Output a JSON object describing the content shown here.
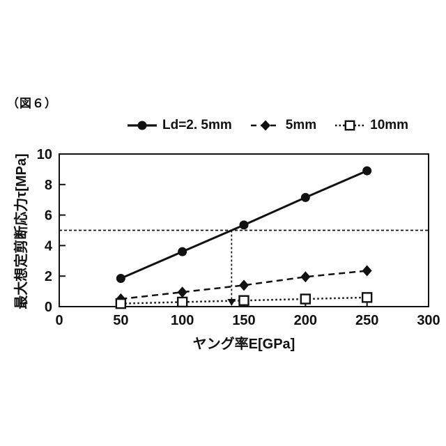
{
  "figure_label": "（図６）",
  "colors": {
    "ink": "#111111",
    "background": "#ffffff"
  },
  "legend": {
    "items": [
      {
        "label": "Ld=2. 5mm",
        "marker": "circle-filled",
        "line": "solid"
      },
      {
        "label": "5mm",
        "marker": "diamond-filled",
        "line": "dashed"
      },
      {
        "label": "10mm",
        "marker": "square-open",
        "line": "dotted"
      }
    ]
  },
  "chart_data": {
    "type": "line",
    "title": "",
    "xlabel": "ヤング率E[GPa]",
    "ylabel": "最大想定剪断応力τ[MPa]",
    "xlim": [
      0,
      300
    ],
    "ylim": [
      0,
      10
    ],
    "x_ticks": [
      0,
      50,
      100,
      150,
      200,
      250,
      300
    ],
    "y_ticks": [
      0,
      2,
      4,
      6,
      8,
      10
    ],
    "x": [
      50,
      100,
      150,
      200,
      250
    ],
    "series": [
      {
        "name": "Ld=2. 5mm",
        "line": "solid",
        "marker": "circle-filled",
        "values": [
          1.85,
          3.6,
          5.35,
          7.15,
          8.9
        ]
      },
      {
        "name": "5mm",
        "line": "dashed",
        "marker": "diamond-filled",
        "values": [
          0.5,
          0.95,
          1.4,
          1.95,
          2.35
        ]
      },
      {
        "name": "10mm",
        "line": "dotted",
        "marker": "square-open",
        "values": [
          0.2,
          0.3,
          0.4,
          0.5,
          0.6
        ]
      }
    ],
    "annotations": {
      "hline_y": 5,
      "vline_x": 140,
      "vline_arrow": "down"
    },
    "grid": false,
    "legend_position": "top"
  }
}
